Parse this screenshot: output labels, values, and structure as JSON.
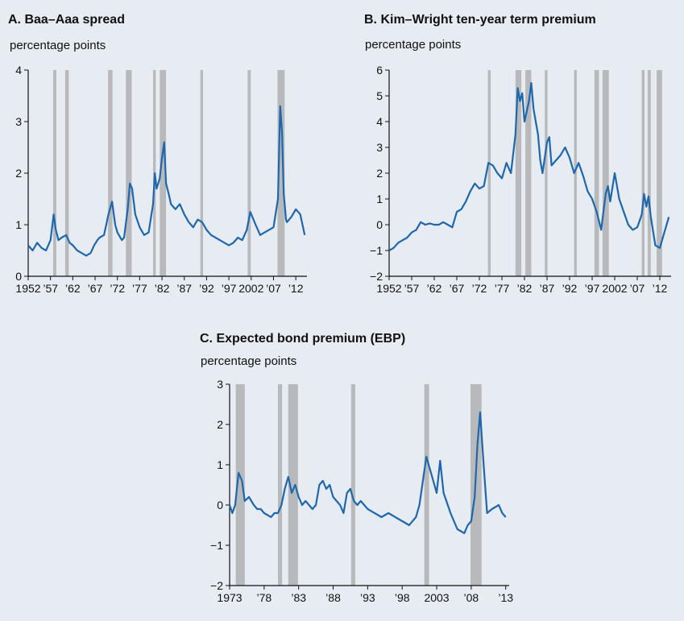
{
  "colors": {
    "background": "#e7ebf2",
    "line": "#1f67ad",
    "recession": "#b8b9bb",
    "axis": "#111111"
  },
  "chart_data": [
    {
      "id": "a",
      "type": "line",
      "title": "A. Baa–Aaa spread",
      "ylabel": "percentage points",
      "xlim": [
        1952,
        2014.5
      ],
      "ylim": [
        0,
        4
      ],
      "yticks": [
        0,
        1,
        2,
        3,
        4
      ],
      "xtick_positions": [
        1952,
        1957,
        1962,
        1967,
        1972,
        1977,
        1982,
        1987,
        1992,
        1997,
        2002,
        2007,
        2012
      ],
      "xtick_labels": [
        "1952",
        "’57",
        "’62",
        "’67",
        "’72",
        "’77",
        "’82",
        "’87",
        "’92",
        "’97",
        "2002",
        "’07",
        "’12"
      ],
      "recessions": [
        [
          1957.6,
          1958.3
        ],
        [
          1960.3,
          1961.1
        ],
        [
          1969.9,
          1970.9
        ],
        [
          1973.9,
          1975.2
        ],
        [
          1980.0,
          1980.6
        ],
        [
          1981.5,
          1982.9
        ],
        [
          1990.6,
          1991.2
        ],
        [
          2001.2,
          2001.9
        ],
        [
          2007.9,
          2009.5
        ]
      ],
      "series": [
        {
          "x": [
            1952,
            1953,
            1954,
            1955,
            1956,
            1957,
            1957.7,
            1958.2,
            1958.8,
            1959.5,
            1960.5,
            1961.3,
            1962,
            1963,
            1964,
            1965,
            1966,
            1966.8,
            1967.5,
            1968,
            1969,
            1970,
            1970.8,
            1971.5,
            1972,
            1973,
            1973.5,
            1974.3,
            1974.8,
            1975.3,
            1976,
            1977,
            1978,
            1979,
            1980,
            1980.4,
            1980.8,
            1981.5,
            1982,
            1982.5,
            1982.9,
            1983.5,
            1984,
            1985,
            1986,
            1987,
            1988,
            1989,
            1990,
            1991,
            1992,
            1993,
            1994,
            1995,
            1996,
            1997,
            1998,
            1999,
            2000,
            2001,
            2001.8,
            2002.5,
            2003,
            2004,
            2005,
            2006,
            2007,
            2008,
            2008.5,
            2008.9,
            2009.3,
            2009.8,
            2010,
            2011,
            2012,
            2013,
            2014
          ],
          "y": [
            0.6,
            0.5,
            0.65,
            0.55,
            0.5,
            0.7,
            1.2,
            0.9,
            0.7,
            0.75,
            0.8,
            0.65,
            0.6,
            0.5,
            0.45,
            0.4,
            0.45,
            0.6,
            0.7,
            0.75,
            0.8,
            1.2,
            1.45,
            1.0,
            0.85,
            0.7,
            0.75,
            1.3,
            1.8,
            1.7,
            1.2,
            0.95,
            0.8,
            0.85,
            1.4,
            2.0,
            1.7,
            1.9,
            2.3,
            2.6,
            1.8,
            1.6,
            1.4,
            1.3,
            1.4,
            1.2,
            1.05,
            0.95,
            1.1,
            1.05,
            0.9,
            0.8,
            0.75,
            0.7,
            0.65,
            0.6,
            0.65,
            0.75,
            0.7,
            0.9,
            1.25,
            1.1,
            1.0,
            0.8,
            0.85,
            0.9,
            0.95,
            1.5,
            3.3,
            2.8,
            1.6,
            1.1,
            1.05,
            1.15,
            1.3,
            1.2,
            0.8
          ]
        }
      ]
    },
    {
      "id": "b",
      "type": "line",
      "title": "B. Kim–Wright ten-year term premium",
      "ylabel": "percentage points",
      "xlim": [
        1952,
        2014.5
      ],
      "ylim": [
        -2,
        6
      ],
      "yticks": [
        -2,
        -1,
        0,
        1,
        2,
        3,
        4,
        5,
        6
      ],
      "xtick_positions": [
        1952,
        1957,
        1962,
        1967,
        1972,
        1977,
        1982,
        1987,
        1992,
        1997,
        2002,
        2007,
        2012
      ],
      "xtick_labels": [
        "1952",
        "’57",
        "’62",
        "’67",
        "’72",
        "’77",
        "’82",
        "’87",
        "’92",
        "’97",
        "2002",
        "’07",
        "’12"
      ],
      "recessions": [
        [
          1973.9,
          1974.5
        ],
        [
          1980.0,
          1981.3
        ],
        [
          1982.2,
          1983.5
        ],
        [
          1986.5,
          1987.1
        ],
        [
          1993.0,
          1993.6
        ],
        [
          1997.5,
          1998.5
        ],
        [
          1999.3,
          2000.7
        ],
        [
          2008.0,
          2008.6
        ],
        [
          2009.3,
          2010.0
        ],
        [
          2011.3,
          2012.5
        ]
      ],
      "series": [
        {
          "x": [
            1952,
            1953,
            1954,
            1955,
            1956,
            1957,
            1958,
            1959,
            1960,
            1961,
            1962,
            1963,
            1964,
            1965,
            1966,
            1967,
            1968,
            1969,
            1970,
            1971,
            1972,
            1973,
            1974,
            1975,
            1976,
            1977,
            1978,
            1979,
            1980,
            1980.5,
            1981,
            1981.5,
            1982,
            1983,
            1983.5,
            1984,
            1985,
            1985.5,
            1986,
            1987,
            1987.5,
            1988,
            1989,
            1990,
            1991,
            1992,
            1993,
            1994,
            1995,
            1996,
            1997,
            1998,
            1999,
            2000,
            2000.5,
            2001,
            2002,
            2003,
            2004,
            2005,
            2006,
            2007,
            2008,
            2008.5,
            2009,
            2009.5,
            2010,
            2011,
            2012,
            2013,
            2014
          ],
          "y": [
            -1.0,
            -0.9,
            -0.7,
            -0.6,
            -0.5,
            -0.3,
            -0.2,
            0.1,
            0.0,
            0.05,
            0.0,
            0.0,
            0.1,
            0.0,
            -0.1,
            0.5,
            0.6,
            0.9,
            1.3,
            1.6,
            1.4,
            1.5,
            2.4,
            2.3,
            2.0,
            1.8,
            2.4,
            2.0,
            3.5,
            5.3,
            4.8,
            5.1,
            4.0,
            4.8,
            5.5,
            4.5,
            3.5,
            2.5,
            2.0,
            3.2,
            3.4,
            2.3,
            2.5,
            2.7,
            3.0,
            2.6,
            2.0,
            2.4,
            1.9,
            1.3,
            1.0,
            0.5,
            -0.2,
            1.2,
            1.5,
            0.9,
            2.0,
            1.0,
            0.5,
            0.0,
            -0.2,
            -0.1,
            0.4,
            1.2,
            0.7,
            1.1,
            0.3,
            -0.8,
            -0.9,
            -0.3,
            0.3
          ]
        }
      ]
    },
    {
      "id": "c",
      "type": "line",
      "title": "C. Expected bond premium (EBP)",
      "ylabel": "percentage points",
      "xlim": [
        1973,
        2013.5
      ],
      "ylim": [
        -2,
        3
      ],
      "yticks": [
        -2,
        -1,
        0,
        1,
        2,
        3
      ],
      "xtick_positions": [
        1973,
        1978,
        1983,
        1988,
        1993,
        1998,
        2003,
        2008,
        2013
      ],
      "xtick_labels": [
        "1973",
        "’78",
        "’83",
        "’88",
        "’93",
        "’98",
        "2003",
        "’08",
        "’13"
      ],
      "recessions": [
        [
          1973.9,
          1975.2
        ],
        [
          1980.0,
          1980.6
        ],
        [
          1981.5,
          1982.9
        ],
        [
          1990.6,
          1991.2
        ],
        [
          2001.2,
          2001.9
        ],
        [
          2007.9,
          2009.5
        ]
      ],
      "series": [
        {
          "x": [
            1973,
            1973.4,
            1973.8,
            1974.3,
            1974.8,
            1975.2,
            1975.8,
            1976.5,
            1977,
            1977.5,
            1978,
            1979,
            1979.5,
            1980,
            1980.5,
            1981,
            1981.5,
            1982,
            1982.5,
            1983,
            1983.5,
            1984,
            1985,
            1985.5,
            1986,
            1986.5,
            1987,
            1987.5,
            1988,
            1989,
            1989.5,
            1990,
            1990.5,
            1991,
            1991.5,
            1992,
            1993,
            1994,
            1995,
            1996,
            1997,
            1998,
            1999,
            2000,
            2000.5,
            2001,
            2001.5,
            2002,
            2002.5,
            2003,
            2003.5,
            2004,
            2005,
            2006,
            2007,
            2007.5,
            2008,
            2008.5,
            2008.9,
            2009.3,
            2009.8,
            2010.3,
            2011,
            2012,
            2012.5,
            2013
          ],
          "y": [
            0.0,
            -0.2,
            0.0,
            0.8,
            0.6,
            0.1,
            0.2,
            0.0,
            -0.1,
            -0.1,
            -0.2,
            -0.3,
            -0.2,
            -0.2,
            0.0,
            0.4,
            0.7,
            0.3,
            0.5,
            0.2,
            0.0,
            0.1,
            -0.1,
            0.0,
            0.5,
            0.6,
            0.4,
            0.5,
            0.2,
            0.0,
            -0.2,
            0.3,
            0.4,
            0.1,
            0.0,
            0.1,
            -0.1,
            -0.2,
            -0.3,
            -0.2,
            -0.3,
            -0.4,
            -0.5,
            -0.3,
            0.0,
            0.6,
            1.2,
            0.9,
            0.6,
            0.3,
            1.1,
            0.3,
            -0.2,
            -0.6,
            -0.7,
            -0.5,
            -0.4,
            0.2,
            1.5,
            2.3,
            1.0,
            -0.2,
            -0.1,
            0.0,
            -0.2,
            -0.3
          ]
        }
      ]
    }
  ]
}
